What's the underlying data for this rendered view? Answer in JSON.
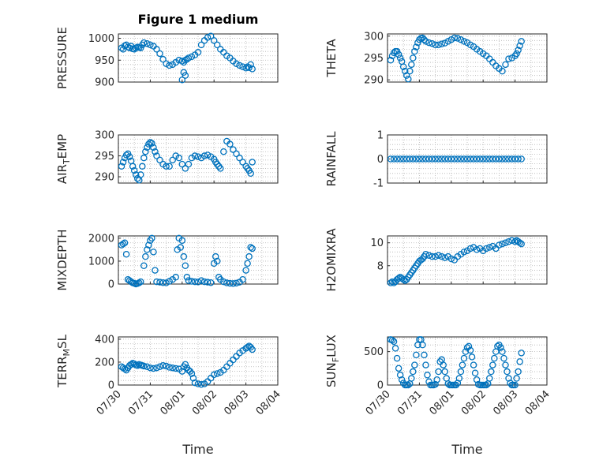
{
  "figure": {
    "title": "Figure 1 medium"
  },
  "colors": {
    "marker": "#0072bd",
    "axis": "#262626"
  },
  "chart_data": [
    {
      "type": "scatter",
      "ylabel": "PRESSURE",
      "ylim": [
        900,
        1010
      ],
      "yticks": [
        900,
        950,
        1000
      ],
      "xticks": [
        "07/30",
        "07/31",
        "08/01",
        "08/02",
        "08/03",
        "08/04"
      ],
      "xlim": [
        0,
        5
      ],
      "show_xticklabels": false,
      "grid": true,
      "x": [
        0.1,
        0.15,
        0.2,
        0.25,
        0.3,
        0.35,
        0.4,
        0.45,
        0.5,
        0.55,
        0.6,
        0.65,
        0.7,
        0.75,
        0.8,
        0.9,
        1.0,
        1.1,
        1.2,
        1.3,
        1.4,
        1.5,
        1.6,
        1.7,
        1.8,
        1.9,
        2.0,
        2.05,
        2.1,
        2.15,
        2.2,
        2.3,
        2.4,
        2.5,
        2.6,
        2.7,
        2.8,
        2.9,
        3.0,
        3.1,
        3.2,
        3.3,
        3.4,
        3.5,
        3.6,
        3.7,
        3.8,
        3.9,
        4.0,
        4.05,
        4.1,
        4.15,
        4.2,
        2.0,
        2.1,
        2.05
      ],
      "y": [
        978,
        975,
        983,
        985,
        980,
        978,
        982,
        976,
        975,
        978,
        980,
        979,
        978,
        985,
        990,
        988,
        985,
        982,
        975,
        965,
        952,
        942,
        938,
        940,
        945,
        950,
        948,
        945,
        950,
        952,
        955,
        958,
        962,
        968,
        985,
        995,
        1002,
        1005,
        995,
        985,
        975,
        968,
        960,
        955,
        948,
        942,
        938,
        935,
        932,
        935,
        933,
        940,
        930,
        905,
        915,
        922
      ]
    },
    {
      "type": "scatter",
      "ylabel": "THETA",
      "ylim": [
        289.5,
        300.5
      ],
      "yticks": [
        290,
        295,
        300
      ],
      "xticks": [
        "07/30",
        "07/31",
        "08/01",
        "08/02",
        "08/03",
        "08/04"
      ],
      "xlim": [
        0,
        5
      ],
      "show_xticklabels": false,
      "grid": true,
      "x": [
        0.1,
        0.15,
        0.2,
        0.25,
        0.3,
        0.35,
        0.4,
        0.45,
        0.5,
        0.55,
        0.6,
        0.65,
        0.7,
        0.75,
        0.8,
        0.85,
        0.9,
        0.95,
        1.0,
        1.05,
        1.1,
        1.15,
        1.2,
        1.3,
        1.4,
        1.5,
        1.6,
        1.7,
        1.8,
        1.9,
        2.0,
        2.1,
        2.2,
        2.3,
        2.4,
        2.5,
        2.6,
        2.7,
        2.8,
        2.9,
        3.0,
        3.1,
        3.2,
        3.3,
        3.4,
        3.5,
        3.6,
        3.7,
        3.8,
        3.9,
        4.0,
        4.05,
        4.1,
        4.15,
        4.2
      ],
      "y": [
        294.5,
        295.5,
        296.2,
        296.5,
        296.5,
        295.8,
        295,
        294.2,
        293,
        292,
        291,
        290.2,
        292,
        293.5,
        295,
        296.5,
        297.5,
        298.5,
        299.2,
        299.5,
        299.6,
        299.2,
        298.8,
        298.5,
        298.3,
        298,
        298,
        298.2,
        298.4,
        298.8,
        299.2,
        299.6,
        299.5,
        299.2,
        298.8,
        298.5,
        298.0,
        297.6,
        297.0,
        296.5,
        296.0,
        295.5,
        294.8,
        294.0,
        293.2,
        292.6,
        292.0,
        293.5,
        294.8,
        295.0,
        295.5,
        296.0,
        296.8,
        297.8,
        298.8
      ]
    },
    {
      "type": "scatter",
      "ylabel": "AIR_TEMP",
      "ylim": [
        288.5,
        300
      ],
      "yticks": [
        290,
        295,
        300
      ],
      "xticks": [
        "07/30",
        "07/31",
        "08/01",
        "08/02",
        "08/03",
        "08/04"
      ],
      "xlim": [
        0,
        5
      ],
      "show_xticklabels": false,
      "grid": true,
      "x": [
        0.1,
        0.15,
        0.2,
        0.25,
        0.3,
        0.35,
        0.4,
        0.45,
        0.5,
        0.55,
        0.6,
        0.65,
        0.7,
        0.75,
        0.8,
        0.85,
        0.9,
        0.95,
        1.0,
        1.05,
        1.1,
        1.15,
        1.2,
        1.3,
        1.4,
        1.5,
        1.6,
        1.7,
        1.8,
        1.9,
        2.0,
        2.1,
        2.2,
        2.3,
        2.4,
        2.5,
        2.6,
        2.7,
        2.8,
        2.9,
        3.0,
        3.05,
        3.1,
        3.15,
        3.2,
        3.3,
        3.4,
        3.5,
        3.6,
        3.7,
        3.8,
        3.9,
        4.0,
        4.05,
        4.1,
        4.15,
        4.2
      ],
      "y": [
        292.5,
        293.5,
        294.5,
        295.2,
        295.5,
        294.8,
        293.8,
        292.5,
        291.5,
        290.5,
        289.6,
        289.2,
        290.5,
        292.5,
        294.5,
        296,
        297,
        297.8,
        298.2,
        298,
        297,
        296,
        295,
        294,
        293,
        292.5,
        292.5,
        294,
        295,
        294.5,
        293,
        292,
        293,
        294.5,
        295,
        294.8,
        294.5,
        295,
        295.2,
        294.8,
        294.2,
        293.5,
        293.0,
        292.5,
        292.0,
        296,
        298.5,
        297.8,
        296.5,
        295.5,
        294.5,
        293.5,
        292.5,
        292.0,
        291.5,
        290.8,
        293.5
      ]
    },
    {
      "type": "scatter",
      "ylabel": "RAINFALL",
      "ylim": [
        -1,
        1
      ],
      "yticks": [
        -1,
        0,
        1
      ],
      "xticks": [
        "07/30",
        "07/31",
        "08/01",
        "08/02",
        "08/03",
        "08/04"
      ],
      "xlim": [
        0,
        5
      ],
      "show_xticklabels": false,
      "grid": true,
      "x": [
        0.1,
        0.2,
        0.3,
        0.4,
        0.5,
        0.6,
        0.7,
        0.8,
        0.9,
        1.0,
        1.1,
        1.2,
        1.3,
        1.4,
        1.5,
        1.6,
        1.7,
        1.8,
        1.9,
        2.0,
        2.1,
        2.2,
        2.3,
        2.4,
        2.5,
        2.6,
        2.7,
        2.8,
        2.9,
        3.0,
        3.1,
        3.2,
        3.3,
        3.4,
        3.5,
        3.6,
        3.7,
        3.8,
        3.9,
        4.0,
        4.1,
        4.2
      ],
      "y": [
        0,
        0,
        0,
        0,
        0,
        0,
        0,
        0,
        0,
        0,
        0,
        0,
        0,
        0,
        0,
        0,
        0,
        0,
        0,
        0,
        0,
        0,
        0,
        0,
        0,
        0,
        0,
        0,
        0,
        0,
        0,
        0,
        0,
        0,
        0,
        0,
        0,
        0,
        0,
        0,
        0,
        0
      ]
    },
    {
      "type": "scatter",
      "ylabel": "MIXDEPTH",
      "ylim": [
        0,
        2100
      ],
      "yticks": [
        0,
        1000,
        2000
      ],
      "xticks": [
        "07/30",
        "07/31",
        "08/01",
        "08/02",
        "08/03",
        "08/04"
      ],
      "xlim": [
        0,
        5
      ],
      "show_xticklabels": false,
      "grid": true,
      "x": [
        0.1,
        0.15,
        0.2,
        0.25,
        0.3,
        0.35,
        0.4,
        0.45,
        0.5,
        0.55,
        0.6,
        0.65,
        0.7,
        0.8,
        0.85,
        0.9,
        0.95,
        1.0,
        1.05,
        1.1,
        1.15,
        1.2,
        1.3,
        1.4,
        1.5,
        1.6,
        1.7,
        1.8,
        1.85,
        1.9,
        1.95,
        2.0,
        2.05,
        2.1,
        2.15,
        2.2,
        2.3,
        2.4,
        2.5,
        2.6,
        2.7,
        2.8,
        2.9,
        3.0,
        3.05,
        3.1,
        3.15,
        3.2,
        3.3,
        3.4,
        3.5,
        3.6,
        3.7,
        3.8,
        3.9,
        4.0,
        4.05,
        4.1,
        4.15,
        4.2
      ],
      "y": [
        1700,
        1750,
        1800,
        1300,
        200,
        150,
        100,
        50,
        30,
        0,
        20,
        50,
        100,
        800,
        1200,
        1500,
        1700,
        1900,
        2000,
        1400,
        600,
        100,
        80,
        60,
        50,
        120,
        200,
        300,
        1500,
        2000,
        1600,
        1900,
        1200,
        800,
        300,
        150,
        120,
        100,
        90,
        150,
        100,
        80,
        60,
        900,
        1200,
        1000,
        300,
        200,
        100,
        50,
        30,
        20,
        40,
        80,
        200,
        600,
        900,
        1200,
        1600,
        1550
      ]
    },
    {
      "type": "scatter",
      "ylabel": "H2OMIXRA",
      "ylim": [
        6.4,
        10.6
      ],
      "yticks": [
        8,
        10
      ],
      "xticks": [
        "07/30",
        "07/31",
        "08/01",
        "08/02",
        "08/03",
        "08/04"
      ],
      "xlim": [
        0,
        5
      ],
      "show_xticklabels": false,
      "grid": true,
      "x": [
        0.1,
        0.15,
        0.2,
        0.25,
        0.3,
        0.35,
        0.4,
        0.45,
        0.5,
        0.55,
        0.6,
        0.65,
        0.7,
        0.75,
        0.8,
        0.85,
        0.9,
        0.95,
        1.0,
        1.05,
        1.1,
        1.15,
        1.2,
        1.3,
        1.4,
        1.5,
        1.6,
        1.7,
        1.8,
        1.9,
        2.0,
        2.1,
        2.2,
        2.3,
        2.4,
        2.5,
        2.6,
        2.7,
        2.8,
        2.9,
        3.0,
        3.1,
        3.2,
        3.3,
        3.4,
        3.5,
        3.6,
        3.7,
        3.8,
        3.9,
        4.0,
        4.05,
        4.1,
        4.15,
        4.2
      ],
      "y": [
        6.5,
        6.6,
        6.5,
        6.6,
        6.8,
        6.9,
        7.0,
        6.9,
        6.8,
        6.7,
        6.8,
        7.0,
        7.2,
        7.4,
        7.6,
        7.8,
        8.0,
        8.2,
        8.4,
        8.5,
        8.6,
        8.8,
        9.0,
        8.9,
        8.8,
        8.8,
        8.9,
        8.8,
        8.7,
        8.8,
        8.6,
        8.5,
        8.8,
        9.0,
        9.2,
        9.3,
        9.5,
        9.6,
        9.4,
        9.5,
        9.3,
        9.5,
        9.6,
        9.7,
        9.5,
        9.8,
        9.9,
        10.0,
        10.1,
        10.2,
        10.1,
        10.2,
        10.1,
        10.0,
        9.9
      ]
    },
    {
      "type": "scatter",
      "ylabel": "TERR_MSL",
      "ylim": [
        0,
        420
      ],
      "yticks": [
        0,
        200,
        400
      ],
      "xticks": [
        "07/30",
        "07/31",
        "08/01",
        "08/02",
        "08/03",
        "08/04"
      ],
      "xlim": [
        0,
        5
      ],
      "show_xticklabels": true,
      "grid": true,
      "x": [
        0.1,
        0.15,
        0.2,
        0.25,
        0.3,
        0.35,
        0.4,
        0.45,
        0.5,
        0.55,
        0.6,
        0.65,
        0.7,
        0.75,
        0.8,
        0.9,
        1.0,
        1.1,
        1.2,
        1.3,
        1.4,
        1.5,
        1.6,
        1.7,
        1.8,
        1.9,
        2.0,
        2.05,
        2.1,
        2.15,
        2.2,
        2.25,
        2.3,
        2.35,
        2.4,
        2.5,
        2.6,
        2.7,
        2.8,
        2.9,
        3.0,
        3.1,
        3.2,
        3.3,
        3.4,
        3.5,
        3.6,
        3.7,
        3.8,
        3.9,
        4.0,
        4.05,
        4.1,
        4.15,
        4.2
      ],
      "y": [
        160,
        150,
        140,
        130,
        150,
        170,
        180,
        190,
        185,
        175,
        170,
        180,
        175,
        170,
        165,
        160,
        150,
        145,
        150,
        160,
        170,
        165,
        155,
        150,
        145,
        140,
        120,
        160,
        180,
        150,
        130,
        120,
        100,
        60,
        20,
        10,
        5,
        10,
        30,
        60,
        90,
        100,
        110,
        130,
        160,
        190,
        220,
        250,
        280,
        300,
        320,
        330,
        340,
        330,
        310
      ]
    },
    {
      "type": "scatter",
      "ylabel": "SUN_FLUX",
      "ylim": [
        0,
        720
      ],
      "yticks": [
        0,
        500
      ],
      "xticks": [
        "07/30",
        "07/31",
        "08/01",
        "08/02",
        "08/03",
        "08/04"
      ],
      "xlim": [
        0,
        5
      ],
      "show_xticklabels": true,
      "grid": true,
      "x": [
        0.1,
        0.15,
        0.2,
        0.25,
        0.3,
        0.35,
        0.4,
        0.45,
        0.5,
        0.55,
        0.6,
        0.65,
        0.7,
        0.75,
        0.8,
        0.85,
        0.9,
        0.95,
        1.0,
        1.05,
        1.1,
        1.15,
        1.2,
        1.25,
        1.3,
        1.35,
        1.4,
        1.45,
        1.5,
        1.55,
        1.6,
        1.65,
        1.7,
        1.75,
        1.8,
        1.85,
        1.9,
        1.95,
        2.0,
        2.05,
        2.1,
        2.15,
        2.2,
        2.25,
        2.3,
        2.35,
        2.4,
        2.45,
        2.5,
        2.55,
        2.6,
        2.65,
        2.7,
        2.75,
        2.8,
        2.85,
        2.9,
        2.95,
        3.0,
        3.05,
        3.1,
        3.15,
        3.2,
        3.25,
        3.3,
        3.35,
        3.4,
        3.45,
        3.5,
        3.55,
        3.6,
        3.65,
        3.7,
        3.75,
        3.8,
        3.85,
        3.9,
        3.95,
        4.0,
        4.05,
        4.1,
        4.15,
        4.2
      ],
      "y": [
        680,
        670,
        650,
        550,
        400,
        250,
        150,
        80,
        30,
        0,
        0,
        0,
        20,
        100,
        200,
        300,
        450,
        600,
        680,
        680,
        600,
        450,
        300,
        150,
        50,
        0,
        0,
        0,
        10,
        80,
        200,
        350,
        380,
        300,
        200,
        100,
        20,
        0,
        0,
        0,
        0,
        0,
        30,
        100,
        200,
        300,
        400,
        500,
        560,
        580,
        520,
        420,
        300,
        180,
        80,
        10,
        0,
        0,
        0,
        0,
        0,
        20,
        100,
        200,
        300,
        400,
        500,
        580,
        600,
        560,
        500,
        400,
        300,
        200,
        100,
        30,
        0,
        0,
        0,
        100,
        200,
        350,
        480
      ]
    }
  ]
}
